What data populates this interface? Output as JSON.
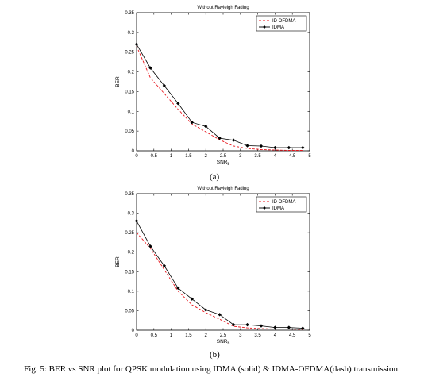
{
  "figure": {
    "sub_labels": [
      "(a)",
      "(b)"
    ],
    "caption": "Fig. 5: BER vs SNR plot for QPSK modulation using IDMA (solid) & IDMA-OFDMA(dash) transmission."
  },
  "chart_data": [
    {
      "type": "line",
      "title": "Without Rayleigh Fading",
      "xlabel": "SNR",
      "xlabel_sub": "b",
      "ylabel": "BER",
      "xlim": [
        0,
        5
      ],
      "ylim": [
        0,
        0.35
      ],
      "xticks": [
        0,
        0.5,
        1,
        1.5,
        2,
        2.5,
        3,
        3.5,
        4,
        4.5,
        5
      ],
      "xtick_labels": [
        "0",
        "0.5",
        "1",
        "1.5",
        "2",
        "2.5",
        "3",
        "3.5",
        "4",
        "4.5",
        "5"
      ],
      "yticks": [
        0,
        0.05,
        0.1,
        0.15,
        0.2,
        0.25,
        0.3,
        0.35
      ],
      "ytick_labels": [
        "0",
        "0.05",
        "0.1",
        "0.15",
        "0.2",
        "0.25",
        "0.3",
        "0.35"
      ],
      "grid": false,
      "legend_position": "top-right",
      "series": [
        {
          "name": "ID OFDMA",
          "style": "dashed",
          "color": "#e8141b",
          "x": [
            0,
            0.4,
            0.8,
            1.2,
            1.6,
            2.0,
            2.4,
            2.8,
            3.2,
            3.6,
            4.0,
            4.4,
            4.8
          ],
          "y": [
            0.265,
            0.185,
            0.145,
            0.105,
            0.068,
            0.048,
            0.028,
            0.012,
            0.006,
            0.003,
            0.002,
            0.001,
            0.001
          ]
        },
        {
          "name": "IDMA",
          "style": "solid",
          "marker": "diamond",
          "color": "#000000",
          "x": [
            0,
            0.4,
            0.8,
            1.2,
            1.6,
            2.0,
            2.4,
            2.8,
            3.2,
            3.6,
            4.0,
            4.4,
            4.8
          ],
          "y": [
            0.27,
            0.21,
            0.165,
            0.12,
            0.072,
            0.062,
            0.032,
            0.027,
            0.013,
            0.012,
            0.008,
            0.008,
            0.008
          ]
        }
      ]
    },
    {
      "type": "line",
      "title": "Without Rayleigh Fading",
      "xlabel": "SNR",
      "xlabel_sub": "b",
      "ylabel": "BER",
      "xlim": [
        0,
        5
      ],
      "ylim": [
        0,
        0.35
      ],
      "xticks": [
        0,
        0.5,
        1,
        1.5,
        2,
        2.5,
        3,
        3.5,
        4,
        4.5,
        5
      ],
      "xtick_labels": [
        "0",
        "0.5",
        "1",
        "1.5",
        "2",
        "2.5",
        "3",
        "3.5",
        "4",
        "4.5",
        "5"
      ],
      "yticks": [
        0,
        0.05,
        0.1,
        0.15,
        0.2,
        0.25,
        0.3,
        0.35
      ],
      "ytick_labels": [
        "0",
        "0.05",
        "0.1",
        "0.15",
        "0.2",
        "0.25",
        "0.3",
        "0.35"
      ],
      "grid": false,
      "legend_position": "top-right",
      "series": [
        {
          "name": "ID OFDMA",
          "style": "dashed",
          "color": "#e8141b",
          "x": [
            0,
            0.4,
            0.8,
            1.2,
            1.6,
            2.0,
            2.4,
            2.8,
            3.2,
            3.6,
            4.0,
            4.4,
            4.8
          ],
          "y": [
            0.25,
            0.21,
            0.155,
            0.1,
            0.065,
            0.045,
            0.028,
            0.01,
            0.006,
            0.004,
            0.003,
            0.003,
            0.002
          ]
        },
        {
          "name": "IDMA",
          "style": "solid",
          "marker": "diamond",
          "color": "#000000",
          "x": [
            0,
            0.4,
            0.8,
            1.2,
            1.6,
            2.0,
            2.4,
            2.8,
            3.2,
            3.6,
            4.0,
            4.4,
            4.8
          ],
          "y": [
            0.28,
            0.215,
            0.165,
            0.108,
            0.08,
            0.052,
            0.04,
            0.014,
            0.014,
            0.011,
            0.007,
            0.007,
            0.005
          ]
        }
      ]
    }
  ]
}
